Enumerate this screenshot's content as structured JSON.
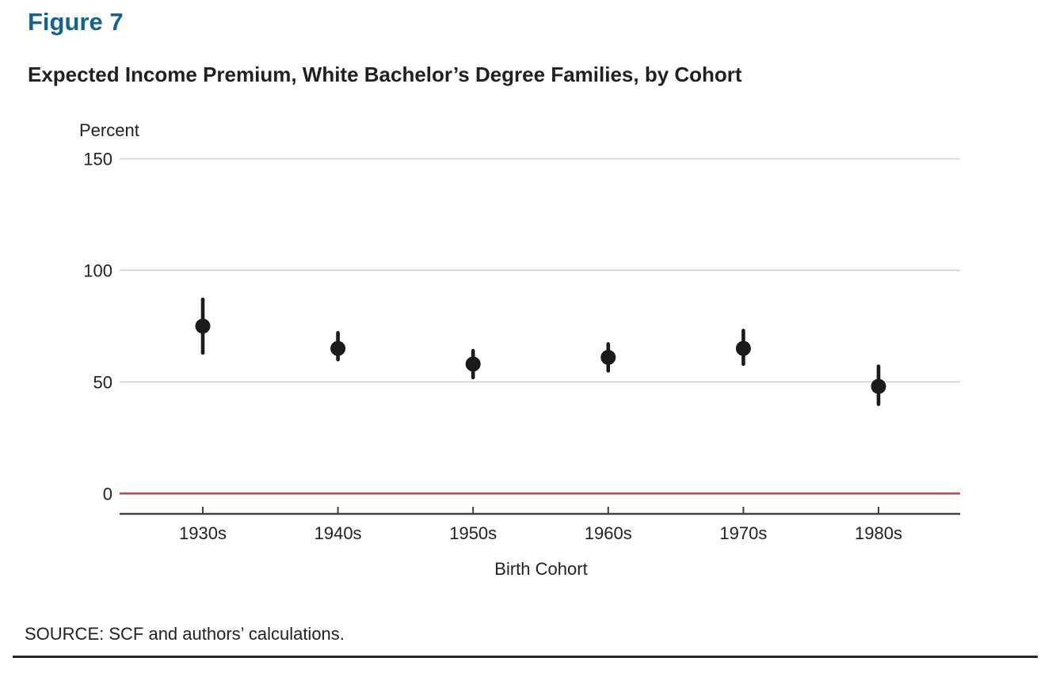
{
  "figure_label": "Figure 7",
  "title": "Expected Income Premium, White Bachelor’s Degree Families, by Cohort",
  "source_note": "SOURCE: SCF and authors’ calculations.",
  "colors": {
    "figure_label_blue": "#16618e",
    "text_black": "#231f20",
    "gridline_gray": "#cfcfcf",
    "zero_line_red": "#bf4a51",
    "axis_dark": "#414042",
    "marker_black": "#1a1a1a",
    "bottom_rule": "#29262a"
  },
  "chart_data": {
    "type": "scatter",
    "subtype": "point estimates with vertical confidence-interval bars",
    "title": "Expected Income Premium, White Bachelor’s Degree Families, by Cohort",
    "xlabel": "Birth Cohort",
    "ylabel": "Percent",
    "categories": [
      "1930s",
      "1940s",
      "1950s",
      "1960s",
      "1970s",
      "1980s"
    ],
    "series": [
      {
        "name": "Expected income premium",
        "values": [
          75,
          65,
          58,
          61,
          65,
          48
        ],
        "ci_low": [
          63,
          60,
          52,
          55,
          58,
          40
        ],
        "ci_high": [
          87,
          72,
          64,
          67,
          73,
          57
        ]
      }
    ],
    "ylim": [
      0,
      150
    ],
    "yticks": [
      150,
      100,
      50,
      0
    ],
    "ytick_labels": [
      "150",
      "100",
      "50",
      "0"
    ],
    "grid": "horizontal light-gray lines at 50/100/150; zero line drawn in red",
    "legend": "none",
    "marker": "filled black circle with thick rounded vertical CI bar"
  }
}
